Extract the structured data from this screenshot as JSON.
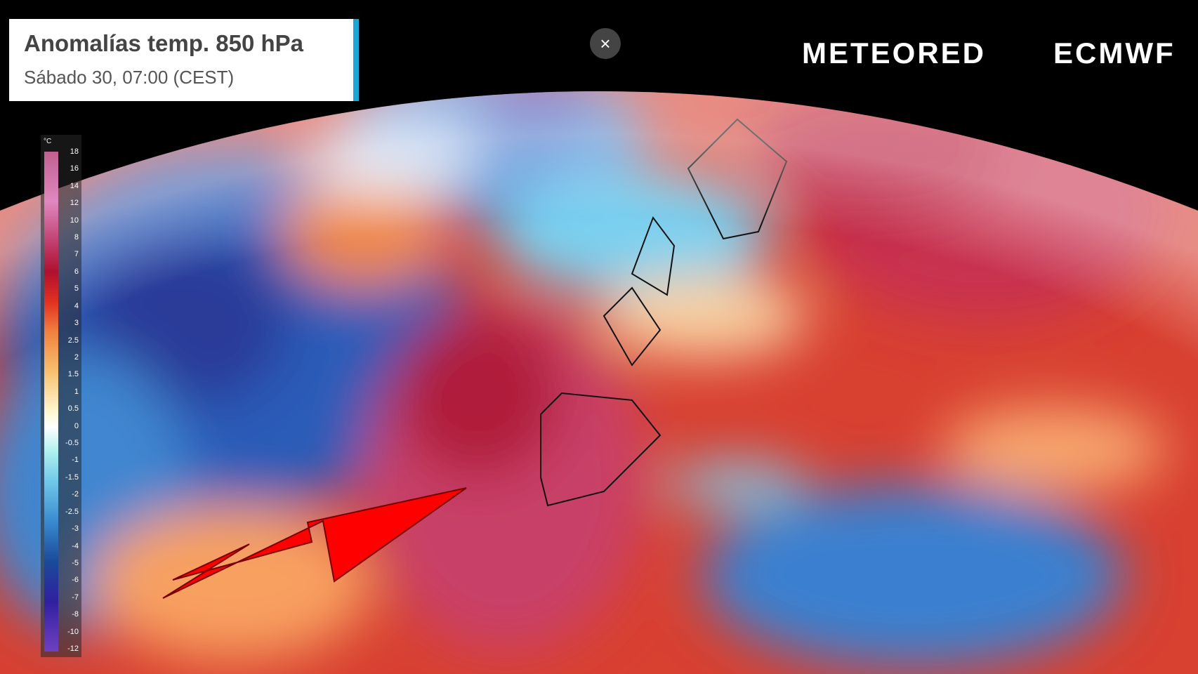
{
  "header": {
    "title": "Anomalías temp. 850 hPa",
    "subtitle": "Sábado 30, 07:00 (CEST)"
  },
  "close_button": "×",
  "brands": [
    "METEORED",
    "ECMWF"
  ],
  "legend": {
    "unit": "°C",
    "labels": [
      18,
      16,
      14,
      12,
      10,
      8,
      7,
      6,
      5,
      4,
      3,
      2.5,
      2,
      1.5,
      1,
      0.5,
      0,
      -0.5,
      -1,
      -1.5,
      -2,
      -2.5,
      -3,
      -4,
      -5,
      -6,
      -7,
      -8,
      -10,
      -12
    ]
  }
}
